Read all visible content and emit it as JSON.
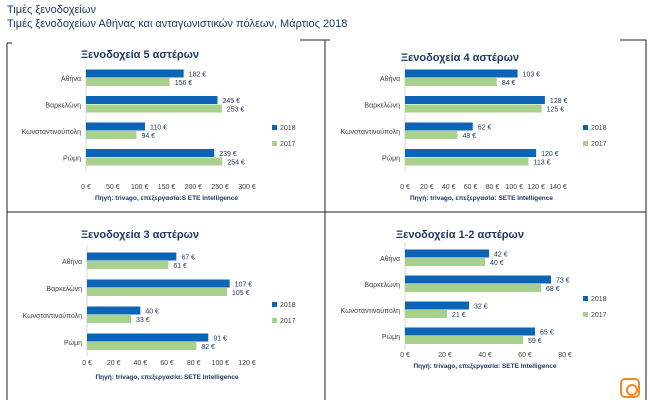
{
  "header": {
    "title": "Τιμές ξενοδοχείων",
    "subtitle": "Τιμές ξενοδοχείων Αθήνας και ανταγωνιστικών πόλεων, Μάρτιος 2018"
  },
  "colors": {
    "2018": "#0c64b4",
    "2017": "#a9d18e",
    "title": "#1f3864",
    "text": "#404040"
  },
  "chart_data": [
    {
      "type": "bar",
      "orientation": "horizontal",
      "title": "Ξενοδοχεία 5 αστέρων",
      "categories": [
        "Αθήνα",
        "Βαρκελώνη",
        "Κωνσταντινούπολη",
        "Ρώμη"
      ],
      "series": [
        {
          "name": "2018",
          "values": [
            182,
            245,
            110,
            239
          ]
        },
        {
          "name": "2017",
          "values": [
            156,
            253,
            94,
            254
          ]
        }
      ],
      "xlim": [
        0,
        300
      ],
      "xticks": [
        "0 €",
        "50 €",
        "100 €",
        "150 €",
        "200 €",
        "250 €",
        "300 €"
      ],
      "value_suffix": " €",
      "source": "Πηγή: trivago, επεξεργασία:S ETE Intelligence",
      "legend": "right",
      "grid": false
    },
    {
      "type": "bar",
      "orientation": "horizontal",
      "title": "Ξενοδοχεία 4 αστέρων",
      "categories": [
        "Αθήνα",
        "Βαρκελώνη",
        "Κωνσταντινούπολη",
        "Ρώμη"
      ],
      "series": [
        {
          "name": "2018",
          "values": [
            103,
            128,
            62,
            120
          ]
        },
        {
          "name": "2017",
          "values": [
            84,
            125,
            48,
            113
          ]
        }
      ],
      "xlim": [
        0,
        140
      ],
      "xticks": [
        "0 €",
        "20 €",
        "40 €",
        "60 €",
        "80 €",
        "100 €",
        "120 €",
        "140 €"
      ],
      "value_suffix": " €",
      "source": "Πηγή: trivago, επεξεργασία: SETE Intelligence",
      "legend": "right",
      "grid": false
    },
    {
      "type": "bar",
      "orientation": "horizontal",
      "title": "Ξενοδοχεία 3 αστέρων",
      "categories": [
        "Αθήνα",
        "Βαρκελώνη",
        "Κωνσταντινούπολη",
        "Ρώμη"
      ],
      "series": [
        {
          "name": "2018",
          "values": [
            67,
            107,
            40,
            91
          ]
        },
        {
          "name": "2017",
          "values": [
            61,
            105,
            33,
            82
          ]
        }
      ],
      "xlim": [
        0,
        120
      ],
      "xticks": [
        "0 €",
        "20 €",
        "40 €",
        "60 €",
        "80 €",
        "100 €",
        "120 €"
      ],
      "value_suffix": " €",
      "source": "Πηγή: trivago, επεξεργασία: SETE Intelligence",
      "legend": "right",
      "grid": false
    },
    {
      "type": "bar",
      "orientation": "horizontal",
      "title": "Ξενοδοχεία 1-2 αστέρων",
      "categories": [
        "Αθήνα",
        "Βαρκελώνη",
        "Κωνσταντινούπολη",
        "Ρώμη"
      ],
      "series": [
        {
          "name": "2018",
          "values": [
            42,
            73,
            32,
            65
          ]
        },
        {
          "name": "2017",
          "values": [
            40,
            68,
            21,
            59
          ]
        }
      ],
      "xlim": [
        0,
        80
      ],
      "xticks": [
        "0 €",
        "20 €",
        "40 €",
        "60 €",
        "80 €"
      ],
      "value_suffix": " €",
      "source": "Πηγή: trivago, επεξεργασία: SETE Intelligence",
      "legend": "right",
      "grid": false
    }
  ]
}
